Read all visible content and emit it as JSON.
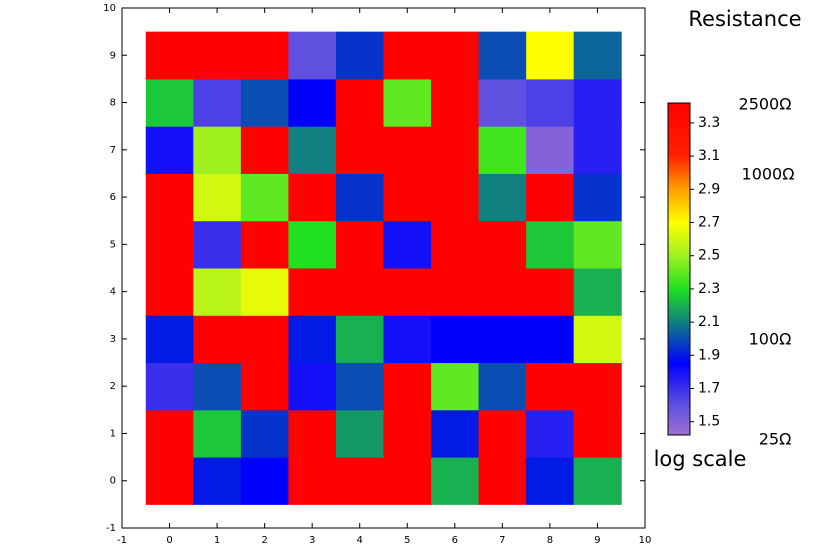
{
  "chart_data": {
    "type": "heatmap",
    "x": [
      0,
      1,
      2,
      3,
      4,
      5,
      6,
      7,
      8,
      9
    ],
    "y": [
      0,
      1,
      2,
      3,
      4,
      5,
      6,
      7,
      8,
      9
    ],
    "z": [
      [
        3.4,
        1.9,
        1.85,
        3.4,
        3.4,
        3.4,
        2.2,
        3.4,
        1.9,
        2.2
      ],
      [
        3.4,
        2.25,
        1.95,
        3.4,
        2.15,
        3.4,
        1.9,
        3.4,
        1.75,
        3.4
      ],
      [
        1.7,
        2.0,
        3.4,
        1.8,
        2.0,
        3.4,
        2.4,
        2.0,
        3.4,
        3.4
      ],
      [
        1.9,
        3.4,
        3.4,
        1.9,
        2.2,
        1.8,
        1.85,
        1.85,
        1.85,
        2.6
      ],
      [
        3.4,
        2.55,
        2.65,
        3.4,
        3.4,
        3.4,
        3.4,
        3.4,
        3.4,
        2.2
      ],
      [
        3.4,
        1.7,
        3.4,
        2.3,
        3.4,
        1.8,
        3.4,
        3.4,
        2.25,
        2.4
      ],
      [
        3.4,
        2.6,
        2.4,
        3.4,
        1.95,
        3.4,
        3.4,
        2.1,
        3.4,
        1.95
      ],
      [
        1.8,
        2.5,
        3.4,
        2.1,
        3.4,
        3.4,
        3.4,
        2.35,
        1.5,
        1.75
      ],
      [
        2.25,
        1.65,
        2.0,
        1.85,
        3.4,
        2.4,
        3.4,
        1.6,
        1.65,
        1.75
      ],
      [
        3.4,
        3.4,
        3.4,
        1.6,
        1.95,
        3.4,
        3.4,
        2.0,
        2.7,
        2.05
      ]
    ],
    "xlim": [
      -1,
      10
    ],
    "ylim": [
      -1,
      10
    ],
    "xticks": [
      -1,
      0,
      1,
      2,
      3,
      4,
      5,
      6,
      7,
      8,
      9,
      10
    ],
    "yticks": [
      -1,
      0,
      1,
      2,
      3,
      4,
      5,
      6,
      7,
      8,
      9,
      10
    ],
    "colorbar_title": "Resistance",
    "colorbar_subtitle": "log scale",
    "zlim": [
      1.42,
      3.42
    ],
    "zticks": [
      1.5,
      1.7,
      1.9,
      2.1,
      2.3,
      2.5,
      2.7,
      2.9,
      3.1,
      3.3
    ],
    "colorscale": [
      [
        1.42,
        "#a070d0"
      ],
      [
        1.6,
        "#6050e0"
      ],
      [
        1.85,
        "#0000ff"
      ],
      [
        2.1,
        "#108080"
      ],
      [
        2.3,
        "#20e020"
      ],
      [
        2.5,
        "#a0f020"
      ],
      [
        2.7,
        "#ffff00"
      ],
      [
        2.9,
        "#ffa000"
      ],
      [
        3.1,
        "#ff2000"
      ],
      [
        3.42,
        "#ff0000"
      ]
    ],
    "annotations": [
      "2500Ω",
      "1000Ω",
      "100Ω",
      "25Ω"
    ]
  }
}
